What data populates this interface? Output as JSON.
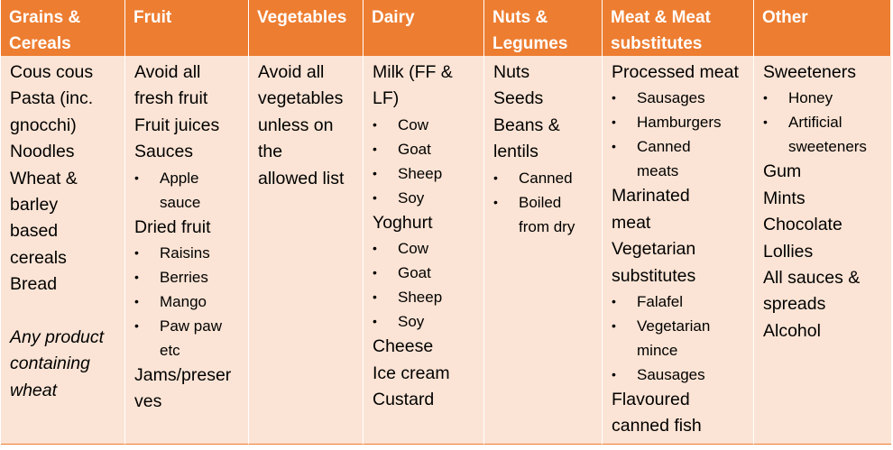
{
  "headers": [
    "Grains & Cereals",
    "Fruit",
    "Vegetables",
    "Dairy",
    "Nuts & Legumes",
    "Meat & Meat substitutes",
    "Other"
  ],
  "grains": {
    "l1": "Cous cous",
    "l2": "Pasta (inc.",
    "l3": "gnocchi)",
    "l4": "Noodles",
    "l5": "Wheat &",
    "l6": "barley",
    "l7": "based",
    "l8": "cereals",
    "l9": "Bread",
    "i1": "Any product",
    "i2": "containing",
    "i3": "wheat"
  },
  "fruit": {
    "l1": "Avoid all",
    "l2": "fresh fruit",
    "l3": "Fruit juices",
    "l4": "Sauces",
    "apple1": "Apple",
    "apple2": "sauce",
    "dried": "Dried fruit",
    "d1": "Raisins",
    "d2": "Berries",
    "d3": "Mango",
    "d4a": "Paw paw",
    "d4b": "etc",
    "j1": "Jams/preser",
    "j2": "ves"
  },
  "veg": {
    "l1": "Avoid all",
    "l2": "vegetables",
    "l3": "unless on",
    "l4": "the",
    "l5": "allowed list"
  },
  "dairy": {
    "milk1": "Milk (FF &",
    "milk2": "LF)",
    "m1": "Cow",
    "m2": "Goat",
    "m3": "Sheep",
    "m4": "Soy",
    "yog": "Yoghurt",
    "y1": "Cow",
    "y2": "Goat",
    "y3": "Sheep",
    "y4": "Soy",
    "cheese": "Cheese",
    "ice": "Ice cream",
    "custard": "Custard"
  },
  "nuts": {
    "l1": "Nuts",
    "l2": "Seeds",
    "l3": "Beans &",
    "l4": "lentils",
    "c1": "Canned",
    "c2a": "Boiled",
    "c2b": "from dry"
  },
  "meat": {
    "proc": "Processed meat",
    "p1": "Sausages",
    "p2": "Hamburgers",
    "p3a": "Canned",
    "p3b": "meats",
    "mar1": "Marinated",
    "mar2": "meat",
    "veg1": "Vegetarian",
    "veg2": "substitutes",
    "v1": "Falafel",
    "v2a": "Vegetarian",
    "v2b": "mince",
    "v3": "Sausages",
    "fl1": "Flavoured",
    "fl2": "canned fish"
  },
  "other": {
    "sweet": "Sweeteners",
    "s1": "Honey",
    "s2a": "Artificial",
    "s2b": "sweeteners",
    "gum": "Gum",
    "mints": "Mints",
    "choc": "Chocolate",
    "lollies": "Lollies",
    "sauces1": "All sauces &",
    "sauces2": "spreads",
    "alcohol": "Alcohol"
  },
  "bullet_glyph": "•"
}
